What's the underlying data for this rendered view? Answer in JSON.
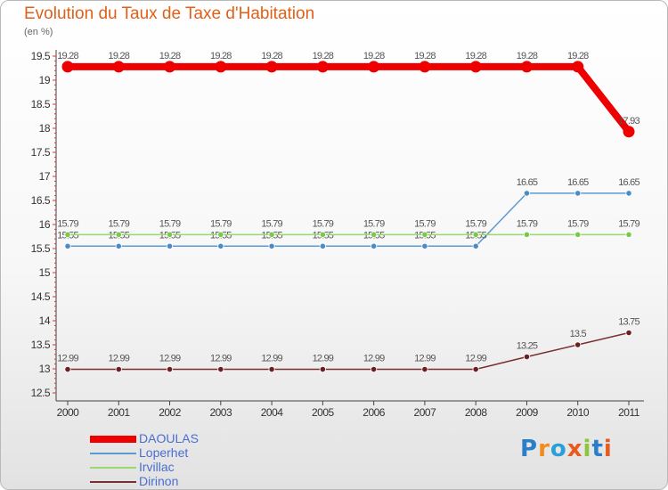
{
  "chart_data": {
    "type": "line",
    "title": "Evolution du Taux de Taxe d'Habitation",
    "unit_label": "(en %)",
    "x": [
      "2000",
      "2001",
      "2002",
      "2003",
      "2004",
      "2005",
      "2006",
      "2007",
      "2008",
      "2009",
      "2010",
      "2011"
    ],
    "ylim": [
      12.5,
      19.5
    ],
    "yticks": [
      "12.5",
      "13",
      "13.5",
      "14",
      "14.5",
      "15",
      "15.5",
      "16",
      "16.5",
      "17",
      "17.5",
      "18",
      "18.5",
      "19",
      "19.5"
    ],
    "grid": false,
    "legend_position": "bottom-left",
    "series": [
      {
        "name": "DAOULAS",
        "color": "#ee0000",
        "thick": true,
        "values": [
          19.28,
          19.28,
          19.28,
          19.28,
          19.28,
          19.28,
          19.28,
          19.28,
          19.28,
          19.28,
          19.28,
          17.93
        ],
        "labels": [
          "19.28",
          "19.28",
          "19.28",
          "19.28",
          "19.28",
          "19.28",
          "19.28",
          "19.28",
          "19.28",
          "19.28",
          "19.28",
          "17.93"
        ]
      },
      {
        "name": "Loperhet",
        "color": "#5b9bd5",
        "marker": "#4a8bc8",
        "values": [
          15.55,
          15.55,
          15.55,
          15.55,
          15.55,
          15.55,
          15.55,
          15.55,
          15.55,
          16.65,
          16.65,
          16.65
        ],
        "labels": [
          "15.55",
          "15.55",
          "15.55",
          "15.55",
          "15.55",
          "15.55",
          "15.55",
          "15.55",
          "15.55",
          "16.65",
          "16.65",
          "16.65"
        ]
      },
      {
        "name": "Irvillac",
        "color": "#99d96e",
        "marker": "#7ac94a",
        "values": [
          15.79,
          15.79,
          15.79,
          15.79,
          15.79,
          15.79,
          15.79,
          15.79,
          15.79,
          15.79,
          15.79,
          15.79
        ],
        "labels": [
          "15.79",
          "15.79",
          "15.79",
          "15.79",
          "15.79",
          "15.79",
          "15.79",
          "15.79",
          "15.79",
          "15.79",
          "15.79",
          "15.79"
        ]
      },
      {
        "name": "Dirinon",
        "color": "#7a2f2f",
        "marker": "#6a2020",
        "values": [
          12.99,
          12.99,
          12.99,
          12.99,
          12.99,
          12.99,
          12.99,
          12.99,
          12.99,
          13.25,
          13.5,
          13.75
        ],
        "labels": [
          "12.99",
          "12.99",
          "12.99",
          "12.99",
          "12.99",
          "12.99",
          "12.99",
          "12.99",
          "12.99",
          "13.25",
          "13.5",
          "13.75"
        ]
      }
    ]
  },
  "logo": {
    "letters": [
      "P",
      "r",
      "o",
      "x",
      "i",
      "t",
      "i"
    ],
    "colors": [
      "#2a7fc8",
      "#f08c1e",
      "#2a9fd8",
      "#e85a1e",
      "#8cc63f",
      "#2a7fc8",
      "#e85a1e"
    ]
  }
}
